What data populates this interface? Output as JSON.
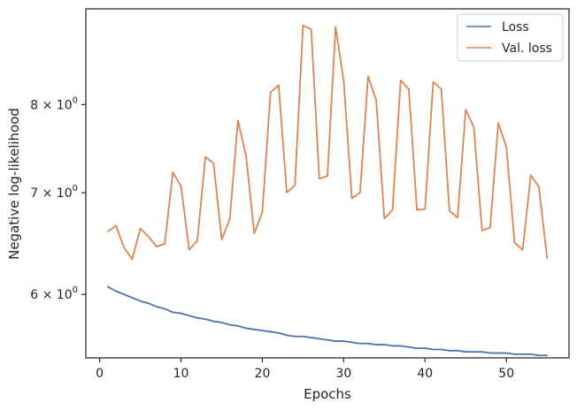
{
  "chart_data": {
    "type": "line",
    "title": "",
    "xlabel": "Epochs",
    "ylabel": "Negative log-likelihood",
    "yscale": "log",
    "xlim": [
      -1.7,
      57.7
    ],
    "ylim": [
      5.45,
      9.25
    ],
    "xticks": [
      0,
      10,
      20,
      30,
      40,
      50
    ],
    "xtick_labels": [
      "0",
      "10",
      "20",
      "30",
      "40",
      "50"
    ],
    "yticks": [
      6,
      7,
      8
    ],
    "ytick_labels": [
      {
        "base": "6",
        "sep": "×",
        "pow": "10",
        "exp": "0"
      },
      {
        "base": "7",
        "sep": "×",
        "pow": "10",
        "exp": "0"
      },
      {
        "base": "8",
        "sep": "×",
        "pow": "10",
        "exp": "0"
      }
    ],
    "grid": false,
    "legend_position": "top-right",
    "x": [
      1,
      2,
      3,
      4,
      5,
      6,
      7,
      8,
      9,
      10,
      11,
      12,
      13,
      14,
      15,
      16,
      17,
      18,
      19,
      20,
      21,
      22,
      23,
      24,
      25,
      26,
      27,
      28,
      29,
      30,
      31,
      32,
      33,
      34,
      35,
      36,
      37,
      38,
      39,
      40,
      41,
      42,
      43,
      44,
      45,
      46,
      47,
      48,
      49,
      50,
      51,
      52,
      53,
      54,
      55
    ],
    "series": [
      {
        "name": "Loss",
        "color": "#4c72b0",
        "values": [
          6.07,
          6.03,
          6.0,
          5.97,
          5.94,
          5.92,
          5.89,
          5.87,
          5.84,
          5.83,
          5.81,
          5.79,
          5.78,
          5.76,
          5.75,
          5.73,
          5.72,
          5.7,
          5.69,
          5.68,
          5.67,
          5.66,
          5.64,
          5.63,
          5.63,
          5.62,
          5.61,
          5.6,
          5.59,
          5.59,
          5.58,
          5.57,
          5.57,
          5.56,
          5.56,
          5.55,
          5.55,
          5.54,
          5.53,
          5.53,
          5.52,
          5.52,
          5.51,
          5.51,
          5.5,
          5.5,
          5.5,
          5.49,
          5.49,
          5.49,
          5.48,
          5.48,
          5.48,
          5.47,
          5.47
        ]
      },
      {
        "name": "Val. loss",
        "color": "#dd8452",
        "values": [
          6.6,
          6.66,
          6.44,
          6.33,
          6.63,
          6.55,
          6.45,
          6.48,
          7.22,
          7.07,
          6.42,
          6.51,
          7.39,
          7.32,
          6.52,
          6.73,
          7.81,
          7.4,
          6.58,
          6.8,
          8.15,
          8.24,
          7.0,
          7.08,
          9.02,
          8.97,
          7.15,
          7.18,
          9.0,
          8.29,
          6.94,
          7.0,
          8.35,
          8.05,
          6.73,
          6.82,
          8.3,
          8.19,
          6.82,
          6.83,
          8.28,
          8.19,
          6.81,
          6.74,
          7.94,
          7.73,
          6.61,
          6.64,
          7.78,
          7.5,
          6.49,
          6.42,
          7.19,
          7.06,
          6.34
        ]
      }
    ]
  }
}
